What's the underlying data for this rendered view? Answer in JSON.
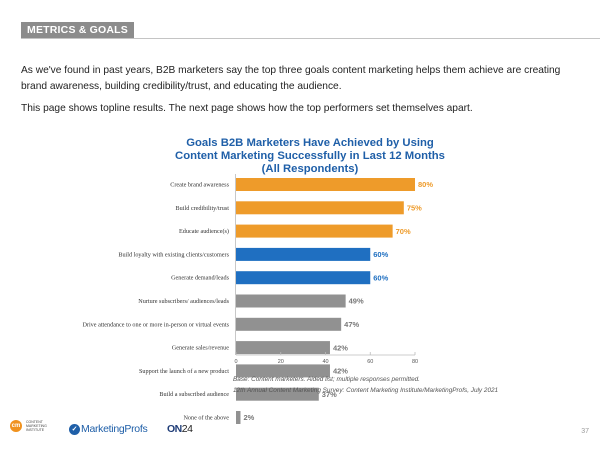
{
  "header": {
    "section_tag": "METRICS & GOALS"
  },
  "intro": {
    "paragraph1": "As we've found in past years, B2B marketers say the top three goals content marketing helps them achieve are creating brand awareness, building credibility/trust, and educating the audience.",
    "paragraph2": "This page shows topline results. The next page shows how the top performers set themselves apart."
  },
  "chart_data": {
    "type": "bar",
    "orientation": "horizontal",
    "title": "Goals B2B Marketers Have Achieved by Using Content Marketing Successfully in Last 12 Months (All Respondents)",
    "title_lines": [
      "Goals B2B Marketers Have Achieved by Using",
      "Content Marketing Successfully in Last 12 Months",
      "(All Respondents)"
    ],
    "categories": [
      "Create brand awareness",
      "Build credibility/trust",
      "Educate audience(s)",
      "Build loyalty with existing clients/customers",
      "Generate demand/leads",
      "Nurture subscribers/ audiences/leads",
      "Drive attendance to one or more in-person or virtual events",
      "Generate sales/revenue",
      "Support the launch of a new product",
      "Build a subscribed audience",
      "None of the above"
    ],
    "values": [
      80,
      75,
      70,
      60,
      60,
      49,
      47,
      42,
      42,
      37,
      2
    ],
    "value_labels": [
      "80%",
      "75%",
      "70%",
      "60%",
      "60%",
      "49%",
      "47%",
      "42%",
      "42%",
      "37%",
      "2%"
    ],
    "bar_colors": [
      "#ee9b2a",
      "#ee9b2a",
      "#ee9b2a",
      "#1f6fc1",
      "#1f6fc1",
      "#919191",
      "#919191",
      "#919191",
      "#919191",
      "#919191",
      "#919191"
    ],
    "label_colors": [
      "#ee9b2a",
      "#ee9b2a",
      "#ee9b2a",
      "#1f6fc1",
      "#1f6fc1",
      "#777777",
      "#777777",
      "#777777",
      "#777777",
      "#777777",
      "#777777"
    ],
    "xlim": [
      0,
      80
    ],
    "xticks": [
      0,
      20,
      40,
      60,
      80
    ],
    "xtick_labels": [
      "0",
      "20",
      "40",
      "60",
      "80"
    ],
    "xlabel": "",
    "ylabel": "",
    "grid": false,
    "legend": "none"
  },
  "notes": {
    "base": "Base: Content marketers. Aided list; multiple responses permitted.",
    "source": "12th Annual Content Marketing Survey: Content Marketing Institute/MarketingProfs, July 2021"
  },
  "footer": {
    "cmi_mark": "cm",
    "cmi_text": "Content Marketing Institute",
    "marketingprofs": "MarketingProfs",
    "on24_prefix": "ON",
    "on24_suffix": "24",
    "page_number": "37"
  }
}
